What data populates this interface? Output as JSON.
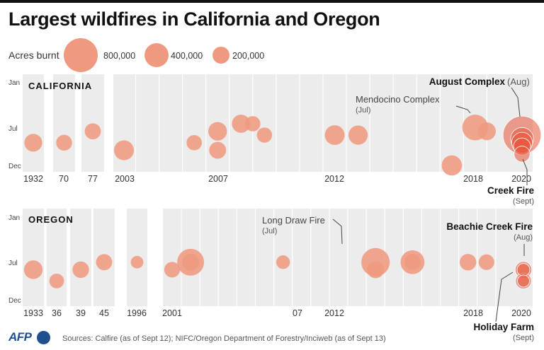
{
  "title": "Largest wildfires in California and Oregon",
  "legend": {
    "label": "Acres burnt",
    "items": [
      {
        "acres": 800000,
        "label": "800,000"
      },
      {
        "acres": 400000,
        "label": "400,000"
      },
      {
        "acres": 200000,
        "label": "200,000"
      }
    ]
  },
  "source": "Sources: Calfire (as of Sept 12); NIFC/Oregon Department of Forestry/Inciweb (as of Sept 13)",
  "brand": "AFP",
  "colors": {
    "bubble": "#ef9a80",
    "bubble_recent": "#e8563b",
    "panel": "#ececec",
    "divider": "#ffffff"
  },
  "chart_data": [
    {
      "type": "scatter",
      "title": "California",
      "y_tick_labels": [
        "Jan",
        "Jul",
        "Dec"
      ],
      "ylim_month": [
        1,
        12
      ],
      "x_label_positions": [
        "1932",
        "70",
        "77",
        "2003",
        "2007",
        "2012",
        "2018",
        "2020"
      ],
      "annotations": [
        {
          "name": "August Complex",
          "detail": "(Aug)",
          "year": 2020,
          "month": 8
        },
        {
          "name": "Mendocino Complex",
          "detail": "(Jul)",
          "year": 2018,
          "month": 7
        },
        {
          "name": "Creek Fire",
          "detail": "(Sept)",
          "year": 2020,
          "month": 9
        }
      ],
      "points": [
        {
          "year": 1932,
          "month": 9,
          "acres": 220000
        },
        {
          "year": 1970,
          "month": 9,
          "acres": 175000
        },
        {
          "year": 1977,
          "month": 7.5,
          "acres": 180000
        },
        {
          "year": 2003,
          "month": 10,
          "acres": 273000
        },
        {
          "year": 2006,
          "month": 9,
          "acres": 162000
        },
        {
          "year": 2007,
          "month": 7.5,
          "acres": 240000
        },
        {
          "year": 2007,
          "month": 10,
          "acres": 198000
        },
        {
          "year": 2008,
          "month": 6.5,
          "acres": 230000
        },
        {
          "year": 2008.5,
          "month": 6.5,
          "acres": 162000
        },
        {
          "year": 2009,
          "month": 8,
          "acres": 160000
        },
        {
          "year": 2012,
          "month": 8,
          "acres": 271000
        },
        {
          "year": 2013,
          "month": 8,
          "acres": 257000
        },
        {
          "year": 2017,
          "month": 12,
          "acres": 282000
        },
        {
          "year": 2018,
          "month": 7,
          "acres": 459000
        },
        {
          "year": 2018.5,
          "month": 7.5,
          "acres": 220000
        },
        {
          "year": 2020,
          "month": 8,
          "acres": 1000000
        },
        {
          "year": 2020,
          "month": 8.5,
          "acres": 363000
        },
        {
          "year": 2020,
          "month": 9,
          "acres": 300000
        },
        {
          "year": 2020,
          "month": 9.5,
          "acres": 200000
        },
        {
          "year": 2020,
          "month": 10.5,
          "acres": 175000
        }
      ]
    },
    {
      "type": "scatter",
      "title": "Oregon",
      "y_tick_labels": [
        "Jan",
        "Jul",
        "Dec"
      ],
      "ylim_month": [
        1,
        12
      ],
      "x_label_positions": [
        "1933",
        "36",
        "39",
        "45",
        "1996",
        "2001",
        "07",
        "2012",
        "2018",
        "2020"
      ],
      "annotations": [
        {
          "name": "Long Draw Fire",
          "detail": "(Jul)",
          "year": 2012,
          "month": 7
        },
        {
          "name": "Beachie Creek Fire",
          "detail": "(Aug)",
          "year": 2020,
          "month": 8
        },
        {
          "name": "Holiday Farm",
          "detail": "(Sept)",
          "year": 2020,
          "month": 9
        }
      ],
      "points": [
        {
          "year": 1933,
          "month": 8,
          "acres": 240000
        },
        {
          "year": 1936,
          "month": 9.5,
          "acres": 150000
        },
        {
          "year": 1939,
          "month": 8,
          "acres": 190000
        },
        {
          "year": 1945,
          "month": 7,
          "acres": 180000
        },
        {
          "year": 1996,
          "month": 7,
          "acres": 110000
        },
        {
          "year": 2001,
          "month": 8,
          "acres": 170000
        },
        {
          "year": 2002,
          "month": 7,
          "acres": 500000
        },
        {
          "year": 2002,
          "month": 7,
          "acres": 200000
        },
        {
          "year": 2007,
          "month": 7,
          "acres": 130000
        },
        {
          "year": 2012,
          "month": 7,
          "acres": 557000
        },
        {
          "year": 2012,
          "month": 8,
          "acres": 200000
        },
        {
          "year": 2014,
          "month": 7,
          "acres": 395000
        },
        {
          "year": 2014,
          "month": 7,
          "acres": 180000
        },
        {
          "year": 2017,
          "month": 7,
          "acres": 190000
        },
        {
          "year": 2018,
          "month": 7,
          "acres": 170000
        },
        {
          "year": 2020,
          "month": 8,
          "acres": 190000
        },
        {
          "year": 2020,
          "month": 8,
          "acres": 110000
        },
        {
          "year": 2020,
          "month": 9.5,
          "acres": 173000
        },
        {
          "year": 2020,
          "month": 9.5,
          "acres": 100000
        }
      ]
    }
  ]
}
